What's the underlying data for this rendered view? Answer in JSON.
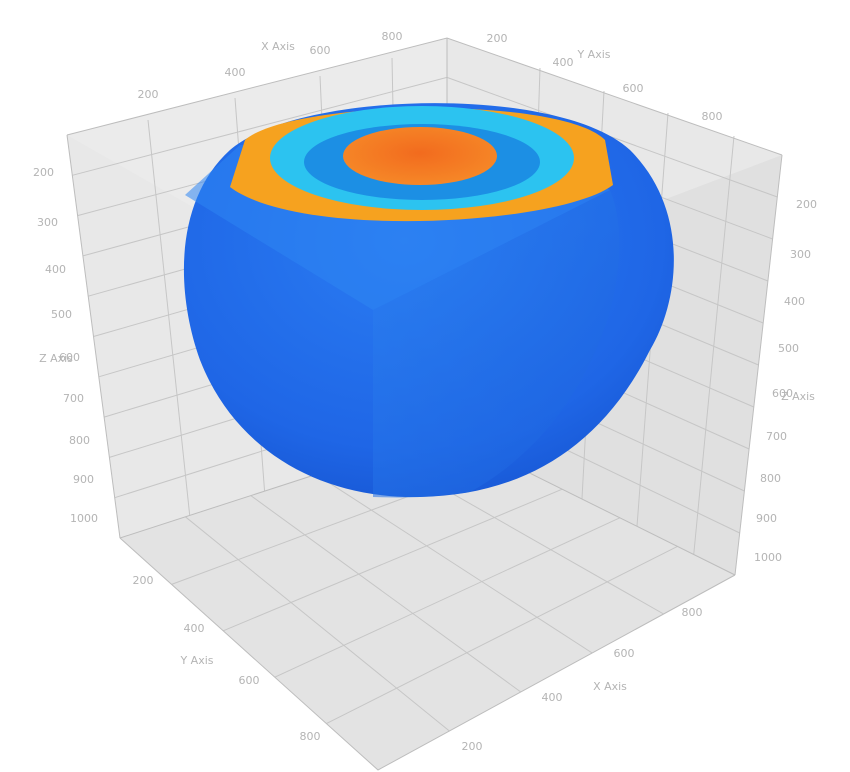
{
  "chart_data": {
    "type": "3d-volume",
    "axes": {
      "x": {
        "label": "X Axis",
        "ticks": [
          "200",
          "400",
          "600",
          "800"
        ]
      },
      "y": {
        "label": "Y Axis",
        "ticks": [
          "200",
          "400",
          "600",
          "800"
        ]
      },
      "z": {
        "label": "Z Axis",
        "ticks": [
          "200",
          "300",
          "400",
          "500",
          "600",
          "700",
          "800",
          "900",
          "1000"
        ]
      }
    },
    "grid": true,
    "colors": {
      "outer": "#1f66e6",
      "ring_orange": "#f7a21f",
      "ring_cyan": "#2cc4f0",
      "core": "#f47a22",
      "box_face": "#dcdcdc",
      "grid_line": "#c8c8c8",
      "tick_text": "#b4b4b4"
    }
  }
}
